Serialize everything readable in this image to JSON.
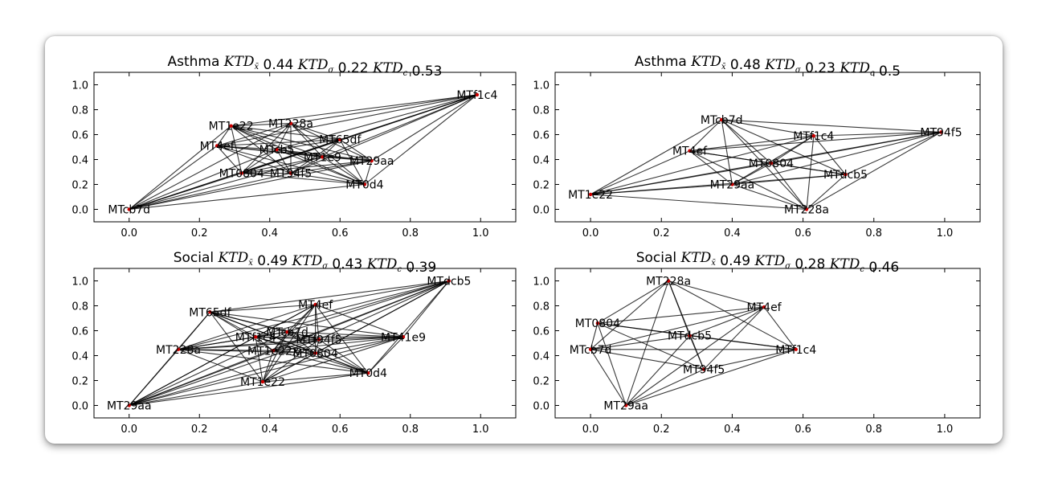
{
  "chart_data": [
    {
      "type": "network",
      "title": "Asthma $KTD_{\\bar{x}}$ 0.44 $KTD_{\\sigma}$ 0.22 $KTD_{c}$ 0.53",
      "title_parts": {
        "group": "Asthma",
        "mean_label": "KTD",
        "mean_sub": "x̄",
        "mean_value": "0.44",
        "sigma_label": "KTD",
        "sigma_sub": "σ",
        "sigma_value": "0.22",
        "c_label": "KTD",
        "c_sub": "c",
        "c_value": "0.53"
      },
      "xlim": [
        -0.1,
        1.1
      ],
      "ylim": [
        -0.1,
        1.1
      ],
      "x_ticks": [
        0.0,
        0.2,
        0.4,
        0.6,
        0.8,
        1.0
      ],
      "y_ticks": [
        0.0,
        0.2,
        0.4,
        0.6,
        0.8,
        1.0
      ],
      "x_tick_labels": [
        "0.0",
        "0.2",
        "0.4",
        "0.6",
        "0.8",
        "1.0"
      ],
      "y_tick_labels": [
        "0.0",
        "0.2",
        "0.4",
        "0.6",
        "0.8",
        "1.0"
      ],
      "nodes": [
        {
          "id": "MTcb7d",
          "x": 0.0,
          "y": 0.0
        },
        {
          "id": "MTf1c4",
          "x": 0.99,
          "y": 0.92
        },
        {
          "id": "MT1e22",
          "x": 0.29,
          "y": 0.67
        },
        {
          "id": "MT228a",
          "x": 0.46,
          "y": 0.69
        },
        {
          "id": "MT4ef",
          "x": 0.25,
          "y": 0.51
        },
        {
          "id": "MTcb5",
          "x": 0.42,
          "y": 0.48
        },
        {
          "id": "MT65df",
          "x": 0.6,
          "y": 0.56
        },
        {
          "id": "MT1e9",
          "x": 0.55,
          "y": 0.42
        },
        {
          "id": "MT29aa",
          "x": 0.69,
          "y": 0.39
        },
        {
          "id": "MT0804",
          "x": 0.32,
          "y": 0.29
        },
        {
          "id": "MT94f5",
          "x": 0.46,
          "y": 0.29
        },
        {
          "id": "MT0d4",
          "x": 0.67,
          "y": 0.2
        }
      ],
      "node_labels": [
        "MTcb7d",
        "MTf1c4",
        "MT1e22",
        "MT228a",
        "MT4ef",
        "MTcb5",
        "MT65df",
        "MT1e9",
        "MT29aa",
        "MT0804",
        "MT94f5",
        "MT0d4"
      ],
      "edges": "complete"
    },
    {
      "type": "network",
      "title": "Asthma $KTD_{\\bar{x}}$ 0.48 $KTD_{\\sigma}$ 0.23 $KTD_{c}$ 0.5",
      "title_parts": {
        "group": "Asthma",
        "mean_label": "KTD",
        "mean_sub": "x̄",
        "mean_value": "0.48",
        "sigma_label": "KTD",
        "sigma_sub": "σ",
        "sigma_value": "0.23",
        "c_label": "KTD",
        "c_sub": "c",
        "c_value": "0.5"
      },
      "xlim": [
        -0.1,
        1.1
      ],
      "ylim": [
        -0.1,
        1.1
      ],
      "x_ticks": [
        0.0,
        0.2,
        0.4,
        0.6,
        0.8,
        1.0
      ],
      "y_ticks": [
        0.0,
        0.2,
        0.4,
        0.6,
        0.8,
        1.0
      ],
      "x_tick_labels": [
        "0.0",
        "0.2",
        "0.4",
        "0.6",
        "0.8",
        "1.0"
      ],
      "y_tick_labels": [
        "0.0",
        "0.2",
        "0.4",
        "0.6",
        "0.8",
        "1.0"
      ],
      "nodes": [
        {
          "id": "MTcb7d",
          "x": 0.37,
          "y": 0.72
        },
        {
          "id": "MTf1c4",
          "x": 0.63,
          "y": 0.59
        },
        {
          "id": "MT94f5",
          "x": 0.99,
          "y": 0.62
        },
        {
          "id": "MT4ef",
          "x": 0.28,
          "y": 0.47
        },
        {
          "id": "MT0804",
          "x": 0.51,
          "y": 0.37
        },
        {
          "id": "MTdcb5",
          "x": 0.72,
          "y": 0.28
        },
        {
          "id": "MT29aa",
          "x": 0.4,
          "y": 0.2
        },
        {
          "id": "MT1e22",
          "x": 0.0,
          "y": 0.12
        },
        {
          "id": "MT228a",
          "x": 0.61,
          "y": 0.0
        }
      ],
      "node_labels": [
        "MTcb7d",
        "MTf1c4",
        "MT94f5",
        "MT4ef",
        "MT0804",
        "MTdcb5",
        "MT29aa",
        "MT1e22",
        "MT228a"
      ],
      "edges": "complete"
    },
    {
      "type": "network",
      "title": "Social $KTD_{\\bar{x}}$ 0.49 $KTD_{\\sigma}$ 0.43 $KTD_{c}$ 0.39",
      "title_parts": {
        "group": "Social",
        "mean_label": "KTD",
        "mean_sub": "x̄",
        "mean_value": "0.49",
        "sigma_label": "KTD",
        "sigma_sub": "σ",
        "sigma_value": "0.43",
        "c_label": "KTD",
        "c_sub": "c",
        "c_value": "0.39"
      },
      "xlim": [
        -0.1,
        1.1
      ],
      "ylim": [
        -0.1,
        1.1
      ],
      "x_ticks": [
        0.0,
        0.2,
        0.4,
        0.6,
        0.8,
        1.0
      ],
      "y_ticks": [
        0.0,
        0.2,
        0.4,
        0.6,
        0.8,
        1.0
      ],
      "x_tick_labels": [
        "0.0",
        "0.2",
        "0.4",
        "0.6",
        "0.8",
        "1.0"
      ],
      "y_tick_labels": [
        "0.0",
        "0.2",
        "0.4",
        "0.6",
        "0.8",
        "1.0"
      ],
      "nodes": [
        {
          "id": "MTdcb5",
          "x": 0.91,
          "y": 1.0
        },
        {
          "id": "MT4ef",
          "x": 0.53,
          "y": 0.81
        },
        {
          "id": "MT65df",
          "x": 0.23,
          "y": 0.75
        },
        {
          "id": "MTcb7d",
          "x": 0.45,
          "y": 0.59
        },
        {
          "id": "MTf1c4",
          "x": 0.36,
          "y": 0.55
        },
        {
          "id": "MTf94f5",
          "x": 0.54,
          "y": 0.53
        },
        {
          "id": "MT41e9",
          "x": 0.78,
          "y": 0.55
        },
        {
          "id": "MT228a",
          "x": 0.14,
          "y": 0.45
        },
        {
          "id": "MT1e22x",
          "x": 0.41,
          "y": 0.44
        },
        {
          "id": "MT0804",
          "x": 0.53,
          "y": 0.42
        },
        {
          "id": "MT0d4",
          "x": 0.68,
          "y": 0.26
        },
        {
          "id": "MT1e22",
          "x": 0.38,
          "y": 0.19
        },
        {
          "id": "MT29aa",
          "x": 0.0,
          "y": 0.0
        }
      ],
      "node_labels": [
        "MTdcb5",
        "MT4ef",
        "MT65df",
        "MTcb7d",
        "MTf1c4",
        "MTf94f5",
        "MT41e9",
        "MT228a",
        "MT1e22x",
        "MT0804",
        "MT0d4",
        "MT1e22",
        "MT29aa"
      ],
      "edges": "complete"
    },
    {
      "type": "network",
      "title": "Social $KTD_{\\bar{x}}$ 0.49 $KTD_{\\sigma}$ 0.28 $KTD_{c}$ 0.46",
      "title_parts": {
        "group": "Social",
        "mean_label": "KTD",
        "mean_sub": "x̄",
        "mean_value": "0.49",
        "sigma_label": "KTD",
        "sigma_sub": "σ",
        "sigma_value": "0.28",
        "c_label": "KTD",
        "c_sub": "c",
        "c_value": "0.46"
      },
      "xlim": [
        -0.1,
        1.1
      ],
      "ylim": [
        -0.1,
        1.1
      ],
      "x_ticks": [
        0.0,
        0.2,
        0.4,
        0.6,
        0.8,
        1.0
      ],
      "y_ticks": [
        0.0,
        0.2,
        0.4,
        0.6,
        0.8,
        1.0
      ],
      "x_tick_labels": [
        "0.0",
        "0.2",
        "0.4",
        "0.6",
        "0.8",
        "1.0"
      ],
      "y_tick_labels": [
        "0.0",
        "0.2",
        "0.4",
        "0.6",
        "0.8",
        "1.0"
      ],
      "nodes": [
        {
          "id": "MT228a",
          "x": 0.22,
          "y": 1.0
        },
        {
          "id": "MT4ef",
          "x": 0.49,
          "y": 0.79
        },
        {
          "id": "MT0804",
          "x": 0.02,
          "y": 0.66
        },
        {
          "id": "MTdcb5",
          "x": 0.28,
          "y": 0.56
        },
        {
          "id": "MTcb7d",
          "x": 0.0,
          "y": 0.45
        },
        {
          "id": "MTf1c4",
          "x": 0.58,
          "y": 0.45
        },
        {
          "id": "MT94f5",
          "x": 0.32,
          "y": 0.29
        },
        {
          "id": "MT29aa",
          "x": 0.1,
          "y": 0.0
        }
      ],
      "node_labels": [
        "MT228a",
        "MT4ef",
        "MT0804",
        "MTdcb5",
        "MTcb7d",
        "MTf1c4",
        "MT94f5",
        "MT29aa"
      ],
      "edges": "complete"
    }
  ],
  "style": {
    "edge_color": "#000000",
    "node_color": "#cc0000",
    "axes_color": "#000000",
    "background": "#ffffff"
  }
}
